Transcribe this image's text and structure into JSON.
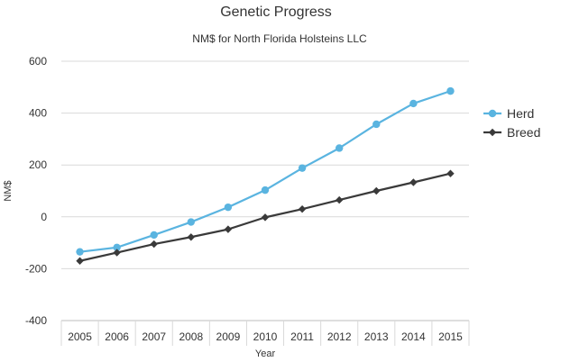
{
  "chart_data": {
    "type": "line",
    "title": "Genetic Progress",
    "subtitle": "NM$ for North Florida Holsteins LLC",
    "xlabel": "Year",
    "ylabel": "NM$",
    "categories": [
      "2005",
      "2006",
      "2007",
      "2008",
      "2009",
      "2010",
      "2011",
      "2012",
      "2013",
      "2014",
      "2015"
    ],
    "ylim": [
      -400,
      600
    ],
    "yticks": [
      -400,
      -200,
      0,
      200,
      400,
      600
    ],
    "grid": true,
    "legend_position": "right",
    "series": [
      {
        "name": "Herd",
        "color": "#5ab4e0",
        "marker": "circle",
        "values": [
          -135,
          -118,
          -70,
          -20,
          37,
          103,
          188,
          265,
          357,
          437,
          485
        ]
      },
      {
        "name": "Breed",
        "color": "#3a3a3a",
        "marker": "diamond",
        "values": [
          -170,
          -138,
          -105,
          -78,
          -48,
          -2,
          30,
          65,
          100,
          133,
          167
        ]
      }
    ]
  }
}
